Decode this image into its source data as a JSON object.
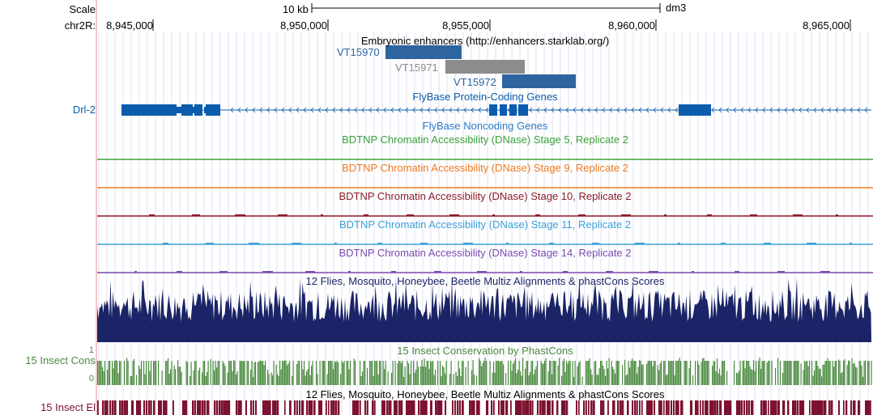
{
  "ruler": {
    "scale_label": "Scale",
    "chrom_label": "chr2R:",
    "scale_bar_label": "10 kb",
    "assembly": "dm3",
    "ticks": [
      "8,945,000",
      "8,950,000",
      "8,955,000",
      "8,960,000",
      "8,965,000"
    ]
  },
  "tracks": {
    "enhancers": {
      "title": "Embryonic enhancers (http://enhancers.starklab.org/)",
      "items": [
        {
          "name": "VT15970",
          "color": "#2e64a0"
        },
        {
          "name": "VT15971",
          "color": "#8c8c8c"
        },
        {
          "name": "VT15972",
          "color": "#2e64a0"
        }
      ]
    },
    "protein_coding": {
      "title": "FlyBase Protein-Coding Genes",
      "gene": "Drl-2",
      "color": "#0b5cad"
    },
    "noncoding": {
      "title": "FlyBase Noncoding Genes",
      "color": "#2a7cc7"
    },
    "dnase": [
      {
        "title": "BDTNP Chromatin Accessibility (DNase) Stage 5, Replicate 2",
        "color": "#3aa23a"
      },
      {
        "title": "BDTNP Chromatin Accessibility (DNase) Stage 9, Replicate 2",
        "color": "#ee7a20"
      },
      {
        "title": "BDTNP Chromatin Accessibility (DNase) Stage 10, Replicate 2",
        "color": "#8c1c28"
      },
      {
        "title": "BDTNP Chromatin Accessibility (DNase) Stage 11, Replicate 2",
        "color": "#3ba0d6"
      },
      {
        "title": "BDTNP Chromatin Accessibility (DNase) Stage 14, Replicate 2",
        "color": "#7a4ab0"
      }
    ],
    "multiz": {
      "title": "12 Flies, Mosquito, Honeybee, Beetle Multiz Alignments & phastCons Scores",
      "color": "#1b2466"
    },
    "cons15": {
      "title": "15 Insect Conservation by PhastCons",
      "label": "15 Insect Cons",
      "ymax": "1",
      "ymin": "0",
      "color": "#4a8a3e"
    },
    "elements": {
      "title": "12 Flies, Mosquito, Honeybee, Beetle Multiz Alignments & phastCons Scores",
      "label": "15 Insect El",
      "color": "#7c1230"
    }
  }
}
